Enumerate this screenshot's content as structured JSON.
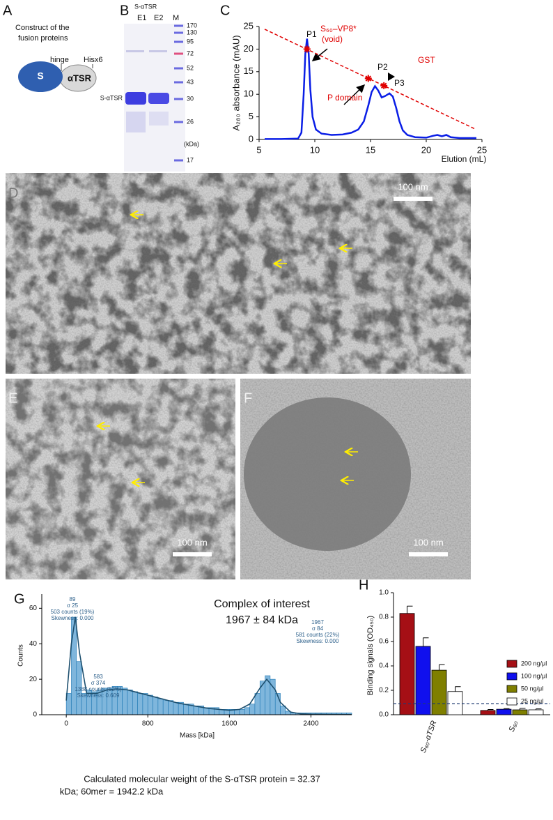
{
  "panel_labels": [
    "A",
    "B",
    "C",
    "D",
    "E",
    "F",
    "G",
    "H"
  ],
  "construct": {
    "title_lines": [
      "Construct of the",
      "fusion proteins"
    ],
    "domain_s": "S",
    "domain_atsr": "αTSR",
    "hinge": "hinge",
    "tag": "Hisx6"
  },
  "gel": {
    "title": "S-αTSR",
    "lanes": [
      "E1",
      "E2",
      "M"
    ],
    "band_label": "S-αTSR",
    "marker_labels": [
      170,
      130,
      95,
      72,
      52,
      43,
      30,
      26,
      17
    ],
    "unit": "(kDa)"
  },
  "micrographs": [
    {
      "scale_bar": "100 nm"
    },
    {
      "scale_bar": "100 nm"
    },
    {
      "scale_bar": "100 nm"
    }
  ],
  "chart_data": [
    {
      "type": "line",
      "x_label": "Elution (mL)",
      "y_label": "A₂₈₀ absorbance (mAU)",
      "xlim": [
        5,
        25
      ],
      "xticks": [
        5,
        10,
        15,
        20,
        25
      ],
      "ylim": [
        0,
        25
      ],
      "yticks": [
        0,
        5,
        10,
        15,
        20,
        25
      ],
      "series": [
        {
          "color": "#0a1ee6",
          "x": [
            5.5,
            7,
            8.5,
            8.8,
            9.0,
            9.15,
            9.3,
            9.45,
            9.6,
            9.8,
            10.1,
            10.6,
            11.5,
            12.5,
            13.3,
            13.9,
            14.4,
            14.8,
            15.1,
            15.4,
            15.7,
            16.0,
            16.3,
            16.7,
            17.0,
            17.3,
            17.6,
            17.9,
            18.3,
            19,
            20,
            20.6,
            21,
            21.4,
            21.8,
            22.2,
            23,
            24.5
          ],
          "values": [
            0.1,
            0.1,
            0.2,
            1.5,
            10,
            19,
            22.3,
            19,
            11,
            5,
            2.2,
            1.3,
            1,
            1.1,
            1.5,
            2.2,
            4,
            7.5,
            10.5,
            11.8,
            10.8,
            9.3,
            9.6,
            10.2,
            9.5,
            7,
            4,
            2,
            1,
            0.5,
            0.4,
            0.8,
            1,
            0.7,
            1,
            0.5,
            0.3,
            0.3
          ]
        },
        {
          "color": "#e00000",
          "dash": true,
          "x": [
            5.5,
            24.4
          ],
          "values": [
            24.4,
            2.3
          ]
        }
      ],
      "markers": {
        "color": "#e00000",
        "x": [
          9.3,
          14.8,
          16.2
        ],
        "values": [
          20,
          13.5,
          11.9
        ]
      },
      "annotations": [
        "P1",
        "P2",
        "P3",
        "S₆₀–VP8*",
        "(void)",
        "GST",
        "P domain"
      ]
    },
    {
      "type": "histogram",
      "x_label": "Mass [kDa]",
      "y_label": "Counts",
      "color": "#7fb6dc",
      "edge_color": "#1f78b4",
      "xlim": [
        -240,
        2800
      ],
      "xticks": [
        0,
        800,
        1600,
        2400
      ],
      "ylim": [
        0,
        68
      ],
      "yticks": [
        0,
        20,
        40,
        60
      ],
      "bins": [
        0,
        50,
        100,
        150,
        200,
        250,
        300,
        350,
        400,
        450,
        500,
        550,
        600,
        650,
        700,
        750,
        800,
        850,
        900,
        950,
        1000,
        1050,
        1100,
        1150,
        1200,
        1250,
        1300,
        1350,
        1400,
        1450,
        1500,
        1550,
        1600,
        1650,
        1700,
        1750,
        1800,
        1850,
        1900,
        1950,
        2000,
        2050,
        2100,
        2150,
        2200,
        2250,
        2300,
        2350,
        2400,
        2450,
        2500,
        2550,
        2600,
        2650,
        2700,
        2750,
        2800
      ],
      "counts": [
        12,
        55,
        30,
        12,
        14,
        13,
        14,
        15,
        15,
        16,
        16,
        15,
        14,
        13,
        12,
        12,
        11,
        10,
        9,
        8,
        8,
        7,
        7,
        6,
        6,
        5,
        5,
        4,
        4,
        4,
        3,
        3,
        3,
        3,
        3,
        4,
        6,
        12,
        19,
        22,
        20,
        12,
        5,
        2,
        1,
        1,
        1,
        1,
        1,
        1,
        1,
        1,
        1,
        1,
        1,
        1
      ],
      "fit": {
        "color": "#1d4f6e",
        "x": [
          0,
          50,
          89,
          130,
          200,
          300,
          400,
          500,
          600,
          700,
          800,
          900,
          1000,
          1100,
          1200,
          1300,
          1400,
          1500,
          1600,
          1700,
          1800,
          1900,
          1967,
          2050,
          2100,
          2200,
          2300,
          2400,
          2600,
          2800
        ],
        "values": [
          8,
          40,
          55,
          35,
          12,
          12,
          14,
          14.5,
          14,
          12.5,
          11,
          9.5,
          8,
          6.5,
          5.5,
          4.5,
          3.5,
          3,
          2.5,
          3,
          6,
          15,
          20,
          14,
          7,
          1.5,
          0.5,
          0.3,
          0.2,
          0.1
        ]
      },
      "peak_labels": [
        [
          "89",
          "σ 25",
          "503 counts (19%)",
          "Skewness: 0.000"
        ],
        [
          "583",
          "σ 374",
          "1388 counts (52%)",
          "Skewness: 0.609"
        ],
        [
          "1967",
          "σ 84",
          "581 counts (22%)",
          "Skewness: 0.000"
        ]
      ],
      "highlight": [
        "Complex of interest",
        "1967 ± 84 kDa"
      ]
    },
    {
      "type": "bar",
      "y_label": "Binding signals (OD₄₅₀)",
      "categories": [
        "S₆₀-αTSR",
        "S₆₀"
      ],
      "ylim": [
        0,
        1.0
      ],
      "yticks": [
        {
          "value": 0,
          "label": "0.0"
        },
        0.2,
        0.4,
        0.6,
        0.8,
        {
          "value": 1.0,
          "label": "1.0"
        }
      ],
      "series": [
        {
          "name": "200 ng/μl",
          "color": "#a50f15",
          "values": [
            0.83,
            0.035
          ],
          "errors": [
            0.06,
            0.008
          ]
        },
        {
          "name": "100 ng/μl",
          "color": "#1010ee",
          "values": [
            0.56,
            0.045
          ],
          "errors": [
            0.07,
            0.005
          ]
        },
        {
          "name": "50 ng/μl",
          "color": "#7f7f00",
          "values": [
            0.365,
            0.04
          ],
          "errors": [
            0.045,
            0.012
          ]
        },
        {
          "name": "25 ng/μl",
          "color": "#ffffff",
          "values": [
            0.19,
            0.04
          ],
          "errors": [
            0.04,
            0.008
          ]
        }
      ],
      "cutoff": 0.09,
      "cutoff_color": "#1f3b73"
    }
  ],
  "caption_lines": [
    "Calculated molecular weight of the S-αTSR protein = 32.37",
    "kDa; 60mer = 1942.2 kDa"
  ]
}
